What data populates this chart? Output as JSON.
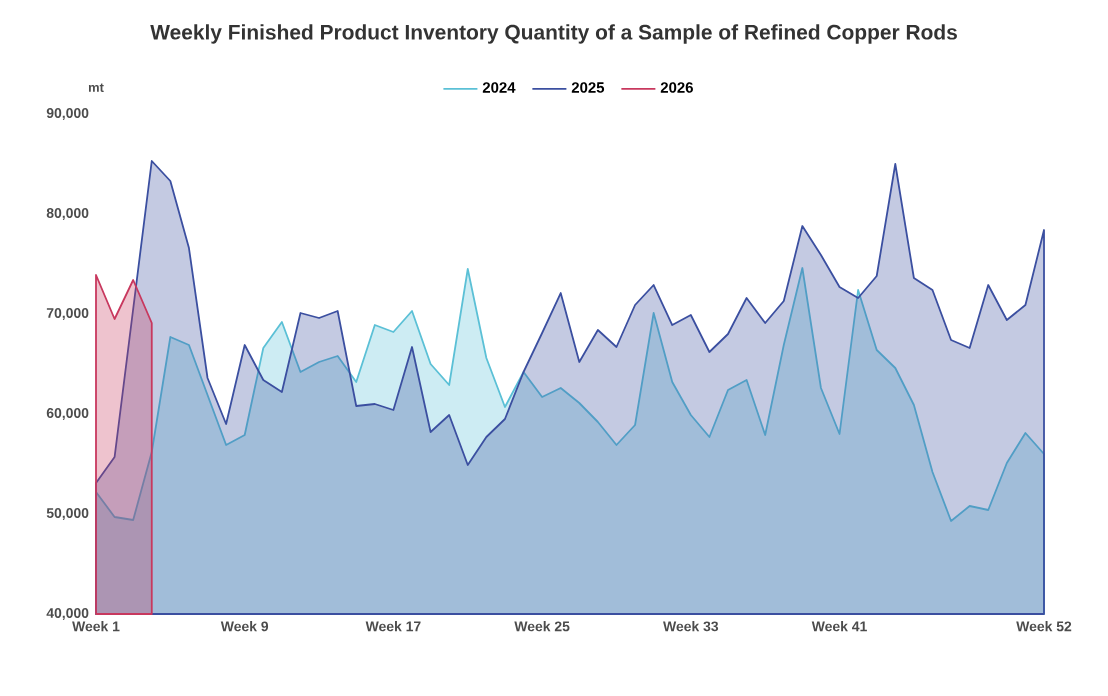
{
  "chart_data": {
    "type": "area",
    "title": "Weekly Finished Product Inventory Quantity of a Sample of Refined Copper Rods",
    "ylabel": "mt",
    "categories": [
      "Week 1",
      null,
      null,
      null,
      null,
      null,
      null,
      null,
      "Week 9",
      null,
      null,
      null,
      null,
      null,
      null,
      null,
      "Week 17",
      null,
      null,
      null,
      null,
      null,
      null,
      null,
      "Week 25",
      null,
      null,
      null,
      null,
      null,
      null,
      null,
      "Week 33",
      null,
      null,
      null,
      null,
      null,
      null,
      null,
      "Week 41",
      null,
      null,
      null,
      null,
      null,
      null,
      null,
      null,
      null,
      null,
      "Week 52"
    ],
    "series": [
      {
        "name": "2024",
        "color": "#5bc0d6",
        "values": [
          52200,
          49700,
          49400,
          56200,
          67700,
          66900,
          61900,
          56900,
          57900,
          66600,
          69200,
          64200,
          65200,
          65800,
          63200,
          68900,
          68200,
          70300,
          65000,
          62900,
          74500,
          65600,
          60700,
          64200,
          61700,
          62600,
          61100,
          59200,
          56900,
          58900,
          70100,
          63200,
          59900,
          57700,
          62400,
          63400,
          57900,
          66900,
          74600,
          62600,
          58000,
          72400,
          66400,
          64600,
          60900,
          54200,
          49300,
          50800,
          50400,
          55100,
          58100,
          56000
        ]
      },
      {
        "name": "2025",
        "color": "#3b4fa0",
        "values": [
          53100,
          55700,
          70500,
          85300,
          83300,
          76600,
          63600,
          59000,
          66900,
          63400,
          62200,
          70100,
          69600,
          70300,
          60800,
          61000,
          60400,
          66700,
          58200,
          59900,
          54900,
          57700,
          59500,
          64200,
          68100,
          72100,
          65200,
          68400,
          66700,
          70900,
          72900,
          68900,
          69900,
          66200,
          68000,
          71600,
          69100,
          71300,
          78800,
          75900,
          72700,
          71600,
          73800,
          85000,
          73600,
          72400,
          67400,
          66600,
          72900,
          69400,
          70900,
          78400
        ]
      },
      {
        "name": "2026",
        "color": "#c8385e",
        "values": [
          73900,
          69500,
          73400,
          69100,
          null,
          null,
          null,
          null,
          null,
          null,
          null,
          null,
          null,
          null,
          null,
          null,
          null,
          null,
          null,
          null,
          null,
          null,
          null,
          null,
          null,
          null,
          null,
          null,
          null,
          null,
          null,
          null,
          null,
          null,
          null,
          null,
          null,
          null,
          null,
          null,
          null,
          null,
          null,
          null,
          null,
          null,
          null,
          null,
          null,
          null,
          null,
          null
        ]
      }
    ],
    "ylim": [
      40000,
      90000
    ],
    "yticks": [
      {
        "value": 40000,
        "label": "40,000"
      },
      {
        "value": 50000,
        "label": "50,000"
      },
      {
        "value": 60000,
        "label": "60,000"
      },
      {
        "value": 70000,
        "label": "70,000"
      },
      {
        "value": 80000,
        "label": "80,000"
      },
      {
        "value": 90000,
        "label": "90,000"
      }
    ],
    "legend": "top",
    "grid": false
  }
}
